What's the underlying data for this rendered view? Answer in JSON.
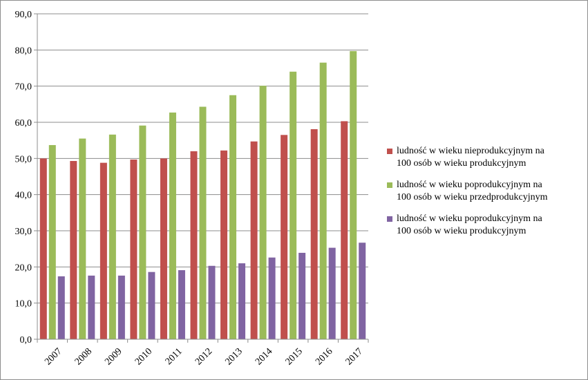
{
  "chart_data": {
    "type": "bar",
    "categories": [
      "2007",
      "2008",
      "2009",
      "2010",
      "2011",
      "2012",
      "2013",
      "2014",
      "2015",
      "2016",
      "2017"
    ],
    "series": [
      {
        "name": "ludność w wieku nieprodukcyjnym na 100 osób w wieku produkcyjnym",
        "legend_lines": [
          "ludność w wieku nieprodukcyjnym na",
          "100 osób w wieku produkcyjnym"
        ],
        "color": "#c0504d",
        "values": [
          50.0,
          49.3,
          48.8,
          49.7,
          50.0,
          52.0,
          52.2,
          54.7,
          56.5,
          58.1,
          60.3
        ]
      },
      {
        "name": "ludność w wieku poprodukcyjnym na 100 osób w wieku przedprodukcyjnym",
        "legend_lines": [
          "ludność w wieku poprodukcyjnym na",
          "100 osób w wieku przedprodukcyjnym"
        ],
        "color": "#9bbb59",
        "values": [
          53.7,
          55.5,
          56.6,
          59.1,
          62.7,
          64.3,
          67.5,
          70.1,
          74.0,
          76.5,
          79.7
        ]
      },
      {
        "name": "ludność w wieku poprodukcyjnym na 100 osób w wieku produkcyjnym",
        "legend_lines": [
          "ludność w wieku poprodukcyjnym na",
          "100 osób w wieku produkcyjnym"
        ],
        "color": "#8064a2",
        "values": [
          17.4,
          17.6,
          17.6,
          18.6,
          19.1,
          20.3,
          21.0,
          22.6,
          23.9,
          25.3,
          26.7
        ]
      }
    ],
    "ylim": [
      0,
      90
    ],
    "yticks": [
      "0,0",
      "10,0",
      "20,0",
      "30,0",
      "40,0",
      "50,0",
      "60,0",
      "70,0",
      "80,0",
      "90,0"
    ],
    "grid": true,
    "legend_position": "right",
    "title": "",
    "xlabel": "",
    "ylabel": ""
  }
}
